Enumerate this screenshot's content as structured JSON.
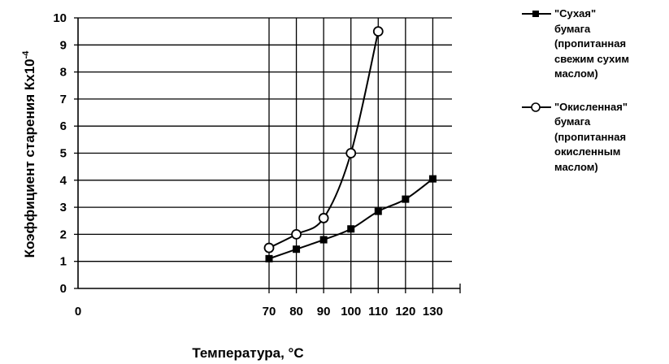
{
  "chart_data": {
    "type": "line",
    "title": "",
    "xlabel": "Температура, °С",
    "ylabel": "Коэффициент старения Кх10",
    "ylabel_sup": "-4",
    "xlim": [
      0,
      140
    ],
    "ylim": [
      0,
      10
    ],
    "x_ticks": [
      0,
      70,
      80,
      90,
      100,
      110,
      120,
      130
    ],
    "y_ticks": [
      0,
      1,
      2,
      3,
      4,
      5,
      6,
      7,
      8,
      9,
      10
    ],
    "grid": true,
    "legend_position": "right",
    "series": [
      {
        "name": "\"Сухая\" бумага (пропитанная свежим сухим маслом)",
        "legend_lines": "\"Сухая\"\nбумага\n(пропитанная\nсвежим сухим\nмаслом)",
        "marker": "filled-square",
        "color": "#000000",
        "x": [
          70,
          80,
          90,
          100,
          110,
          120,
          130
        ],
        "y": [
          1.1,
          1.45,
          1.8,
          2.2,
          2.85,
          3.3,
          4.05
        ]
      },
      {
        "name": "\"Окисленная\" бумага (пропитанная окисленным маслом)",
        "legend_lines": "\"Окисленная\"\nбумага\n(пропитанная\nокисленным\nмаслом)",
        "marker": "open-circle",
        "color": "#000000",
        "x": [
          70,
          80,
          90,
          100,
          110
        ],
        "y": [
          1.5,
          2.0,
          2.6,
          5.0,
          9.5
        ]
      }
    ]
  }
}
